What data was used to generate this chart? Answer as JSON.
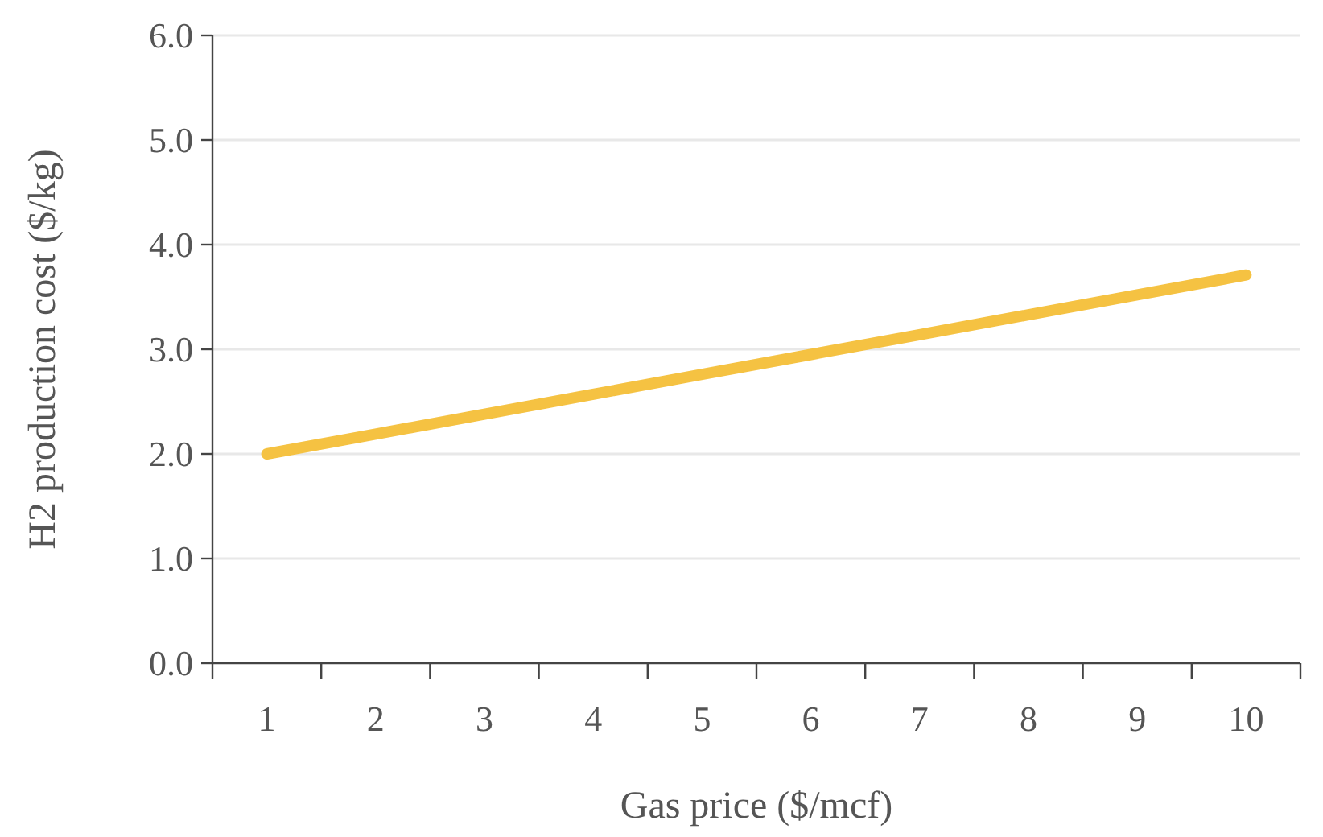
{
  "chart_data": {
    "type": "line",
    "xlabel": "Gas price ($/mcf)",
    "ylabel": "H2 production cost ($/kg)",
    "categories": [
      "1",
      "2",
      "3",
      "4",
      "5",
      "6",
      "7",
      "8",
      "9",
      "10"
    ],
    "series": [
      {
        "color": "#f5c242",
        "values": [
          2.0,
          2.19,
          2.38,
          2.57,
          2.76,
          2.95,
          3.14,
          3.33,
          3.52,
          3.71
        ]
      }
    ],
    "ylim": [
      0,
      6
    ],
    "yticks": [
      {
        "value": 0,
        "label": "0.0"
      },
      {
        "value": 1,
        "label": "1.0"
      },
      {
        "value": 2,
        "label": "2.0"
      },
      {
        "value": 3,
        "label": "3.0"
      },
      {
        "value": 4,
        "label": "4.0"
      },
      {
        "value": 5,
        "label": "5.0"
      },
      {
        "value": 6,
        "label": "6.0"
      }
    ],
    "grid": "y",
    "marker": "none",
    "line_style": "solid"
  }
}
